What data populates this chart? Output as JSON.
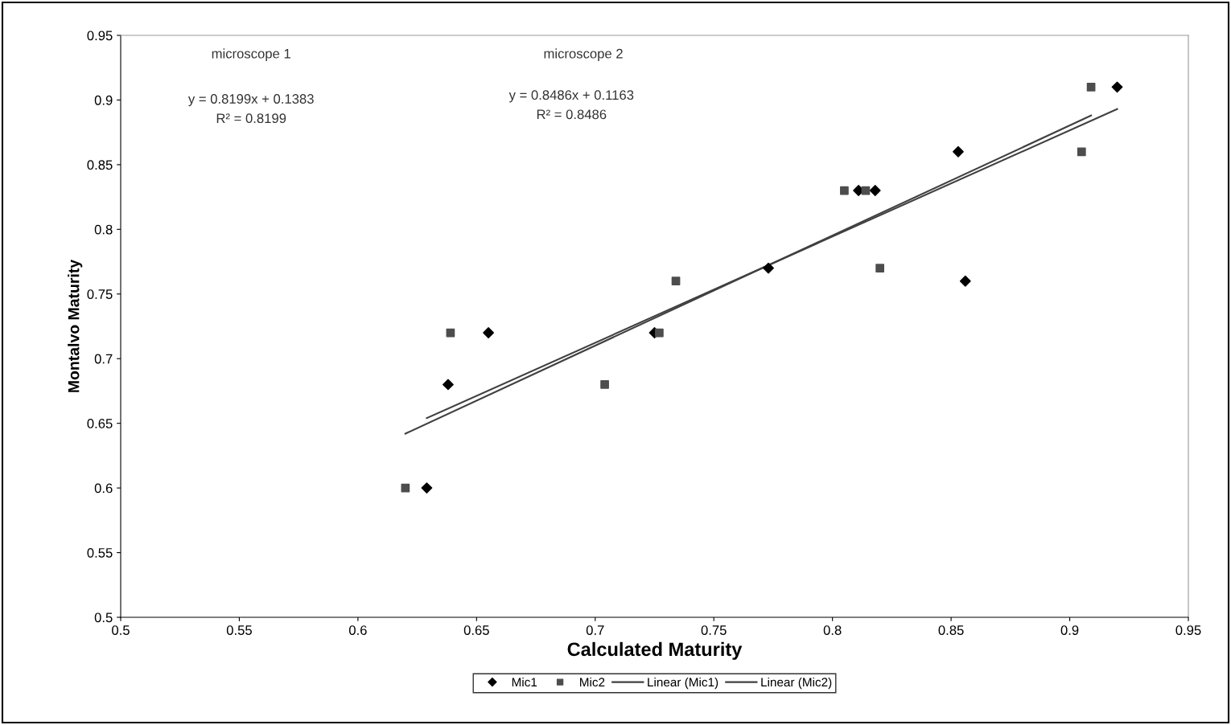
{
  "chart_data": {
    "type": "scatter",
    "xlabel": "Calculated Maturity",
    "ylabel": "Montalvo Maturity",
    "xlim": [
      0.5,
      0.95
    ],
    "ylim": [
      0.5,
      0.95
    ],
    "xticks": [
      0.5,
      0.55,
      0.6,
      0.65,
      0.7,
      0.75,
      0.8,
      0.85,
      0.9,
      0.95
    ],
    "yticks": [
      0.5,
      0.55,
      0.6,
      0.65,
      0.7,
      0.75,
      0.8,
      0.85,
      0.9,
      0.95
    ],
    "grid": false,
    "legend": "bottom",
    "series": [
      {
        "name": "Mic1",
        "marker": "diamond",
        "color": "#000000",
        "x": [
          0.629,
          0.638,
          0.655,
          0.725,
          0.773,
          0.811,
          0.818,
          0.853,
          0.856,
          0.92
        ],
        "values": [
          0.6,
          0.68,
          0.72,
          0.72,
          0.77,
          0.83,
          0.83,
          0.86,
          0.76,
          0.91
        ]
      },
      {
        "name": "Mic2",
        "marker": "square",
        "color": "#4d4d4d",
        "x": [
          0.62,
          0.639,
          0.704,
          0.727,
          0.734,
          0.805,
          0.814,
          0.82,
          0.905,
          0.909
        ],
        "values": [
          0.6,
          0.72,
          0.68,
          0.72,
          0.76,
          0.83,
          0.83,
          0.77,
          0.86,
          0.91
        ]
      },
      {
        "name": "Linear (Mic1)",
        "type": "line",
        "marker": "none",
        "line_style": "solid",
        "color": "#404040",
        "x": [
          0.629,
          0.92
        ],
        "values": [
          0.654,
          0.893
        ]
      },
      {
        "name": "Linear (Mic2)",
        "type": "line",
        "marker": "none",
        "line_style": "solid",
        "color": "#404040",
        "x": [
          0.62,
          0.909
        ],
        "values": [
          0.642,
          0.888
        ]
      }
    ],
    "annotations": [
      "microscope 1",
      "y = 0.8199x + 0.1383",
      "R² = 0.8199",
      "microscope 2",
      "y = 0.8486x + 0.1163",
      "R² = 0.8486"
    ]
  }
}
